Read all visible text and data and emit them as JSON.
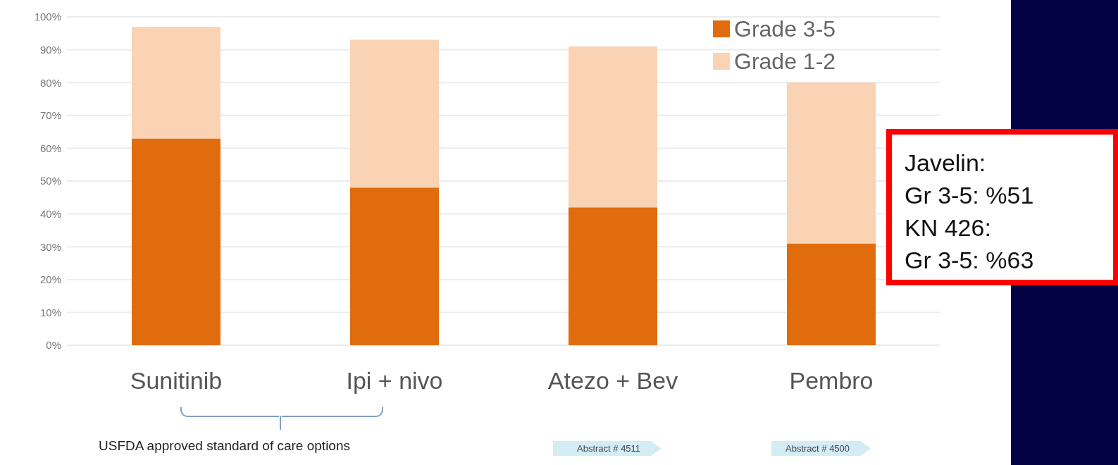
{
  "chart_data": {
    "type": "bar",
    "stacked": true,
    "categories": [
      "Sunitinib",
      "Ipi + nivo",
      "Atezo + Bev",
      "Pembro"
    ],
    "series": [
      {
        "name": "Grade 3-5",
        "color": "#e06c0e",
        "values": [
          63,
          48,
          42,
          31
        ]
      },
      {
        "name": "Grade 1-2",
        "color": "#f9d3b4",
        "values": [
          34,
          45,
          49,
          49
        ]
      }
    ],
    "ylim": [
      0,
      100
    ],
    "yticks": [
      {
        "value": 0,
        "label": "0%"
      },
      {
        "value": 10,
        "label": "10%"
      },
      {
        "value": 20,
        "label": "20%"
      },
      {
        "value": 30,
        "label": "30%"
      },
      {
        "value": 40,
        "label": "40%"
      },
      {
        "value": 50,
        "label": "50%"
      },
      {
        "value": 60,
        "label": "60%"
      },
      {
        "value": 70,
        "label": "70%"
      },
      {
        "value": 80,
        "label": "80%"
      },
      {
        "value": 90,
        "label": "90%"
      },
      {
        "value": 100,
        "label": "100%"
      }
    ],
    "grid": "y",
    "legend": "top right",
    "annotations": [
      "Javelin:\nGr 3-5: %51\nKN 426:\nGr 3-5: %63",
      "USFDA approved standard of care options",
      "Abstract # 4511",
      "Abstract # 4500"
    ]
  }
}
